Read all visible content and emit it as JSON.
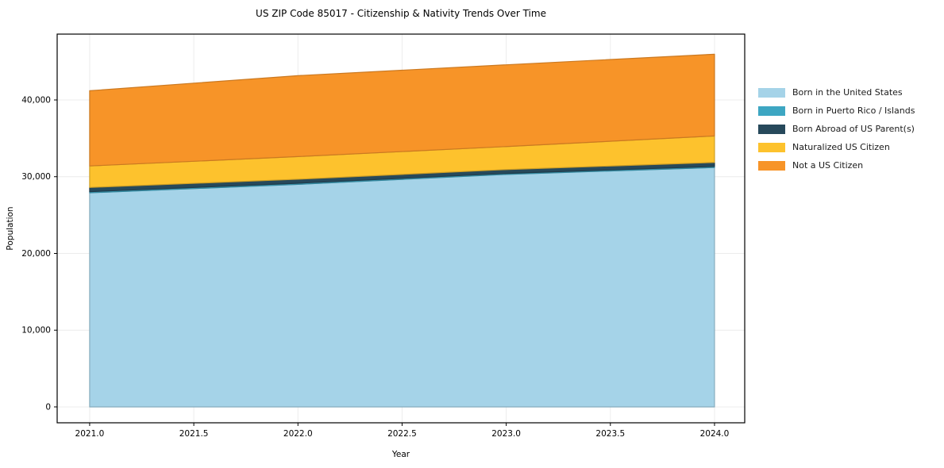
{
  "title": "US ZIP Code 85017 - Citizenship & Nativity Trends Over Time",
  "chart_data": {
    "type": "area",
    "stacked": true,
    "title": "US ZIP Code 85017 - Citizenship & Nativity Trends Over Time",
    "xlabel": "Year",
    "ylabel": "Population",
    "x": [
      2021,
      2022,
      2023,
      2024
    ],
    "series": [
      {
        "name": "Born in the United States",
        "color": "#a5d3e8",
        "values": [
          27900,
          29000,
          30300,
          31200
        ]
      },
      {
        "name": "Born in Puerto Rico / Islands",
        "color": "#3da6c2",
        "values": [
          150,
          150,
          130,
          140
        ]
      },
      {
        "name": "Born Abroad of US Parent(s)",
        "color": "#27495b",
        "values": [
          550,
          520,
          500,
          520
        ]
      },
      {
        "name": "Naturalized US Citizen",
        "color": "#fdc22d",
        "values": [
          2800,
          2950,
          3000,
          3450
        ]
      },
      {
        "name": "Not a US Citizen",
        "color": "#f79428",
        "values": [
          9800,
          10550,
          10650,
          10650
        ]
      }
    ],
    "x_ticks": [
      {
        "v": 2021.0,
        "label": "2021.0"
      },
      {
        "v": 2021.5,
        "label": "2021.5"
      },
      {
        "v": 2022.0,
        "label": "2022.0"
      },
      {
        "v": 2022.5,
        "label": "2022.5"
      },
      {
        "v": 2023.0,
        "label": "2023.0"
      },
      {
        "v": 2023.5,
        "label": "2023.5"
      },
      {
        "v": 2024.0,
        "label": "2024.0"
      }
    ],
    "y_ticks": [
      {
        "v": 0,
        "label": "0"
      },
      {
        "v": 10000,
        "label": "10,000"
      },
      {
        "v": 20000,
        "label": "20,000"
      },
      {
        "v": 30000,
        "label": "30,000"
      },
      {
        "v": 40000,
        "label": "40,000"
      }
    ],
    "xlim": [
      2020.844,
      2024.145
    ],
    "ylim": [
      -2070,
      48580
    ],
    "grid": true,
    "grid_color": "#ececec",
    "legend_position": "right-outside"
  }
}
